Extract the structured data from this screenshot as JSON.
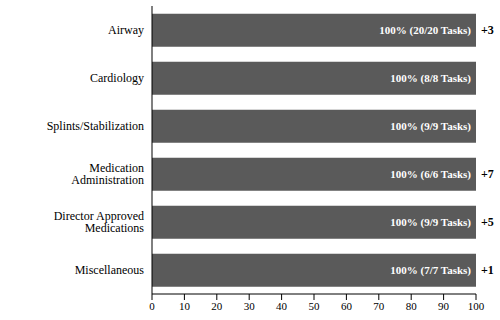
{
  "chart_data": {
    "type": "bar",
    "orientation": "horizontal",
    "categories": [
      "Airway",
      "Cardiology",
      "Splints/Stabilization",
      "Medication Administration",
      "Director Approved Medications",
      "Miscellaneous"
    ],
    "values": [
      100,
      100,
      100,
      100,
      100,
      100
    ],
    "value_labels": [
      "100% (20/20 Tasks)",
      "100% (8/8 Tasks)",
      "100% (9/9 Tasks)",
      "100% (6/6 Tasks)",
      "100% (9/9 Tasks)",
      "100% (7/7 Tasks)"
    ],
    "data_labels": true,
    "annotations": [
      {
        "category": "Airway",
        "text": "+3"
      },
      {
        "category": "Medication Administration",
        "text": "+7"
      },
      {
        "category": "Director Approved Medications",
        "text": "+5"
      },
      {
        "category": "Miscellaneous",
        "text": "+1"
      }
    ],
    "color": "#5a5a5a",
    "xlim": [
      0,
      100
    ],
    "xticks": [
      0,
      10,
      20,
      30,
      40,
      50,
      60,
      70,
      80,
      90,
      100
    ],
    "grid": false
  }
}
